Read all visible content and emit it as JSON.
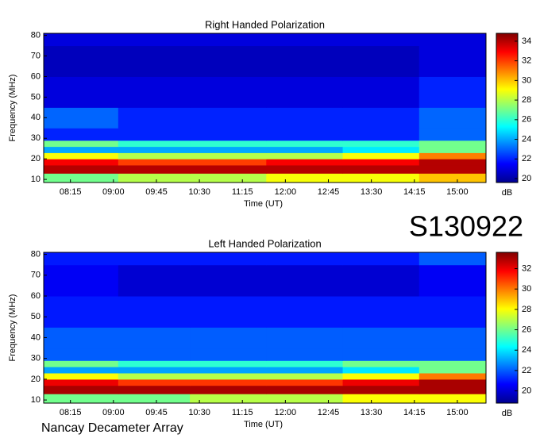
{
  "figure": {
    "id_label": "S130922",
    "footer": "Nancay Decameter Array"
  },
  "chart_data": [
    {
      "type": "heatmap",
      "title": "Right Handed Polarization",
      "x_label": "Time (UT)",
      "y_label": "Frequency (MHz)",
      "colorbar_label": "dB",
      "xlim": [
        467,
        930
      ],
      "xticks": [
        {
          "value": 495,
          "label": "08:15"
        },
        {
          "value": 540,
          "label": "09:00"
        },
        {
          "value": 585,
          "label": "09:45"
        },
        {
          "value": 630,
          "label": "10:30"
        },
        {
          "value": 675,
          "label": "11:15"
        },
        {
          "value": 720,
          "label": "12:00"
        },
        {
          "value": 765,
          "label": "12:45"
        },
        {
          "value": 810,
          "label": "13:30"
        },
        {
          "value": 855,
          "label": "14:15"
        },
        {
          "value": 900,
          "label": "15:00"
        }
      ],
      "ylim": [
        8.5,
        81
      ],
      "yticks": [
        10,
        20,
        30,
        40,
        50,
        60,
        70,
        80
      ],
      "zlim": [
        19.6,
        34.8
      ],
      "zticks": [
        20,
        22,
        24,
        26,
        28,
        30,
        32,
        34
      ],
      "x_bins": [
        467,
        545,
        620,
        700,
        780,
        860,
        930
      ],
      "y_bins": [
        8.5,
        13,
        17,
        20,
        23,
        26,
        29,
        35,
        45,
        60,
        75,
        81
      ],
      "z": [
        [
          27,
          28,
          28,
          29,
          29,
          30
        ],
        [
          34,
          34,
          34,
          34,
          34,
          34
        ],
        [
          33,
          32,
          32,
          33,
          33,
          34
        ],
        [
          29,
          28,
          28,
          28,
          29,
          31
        ],
        [
          24,
          24,
          24,
          24,
          25,
          27
        ],
        [
          27,
          26,
          26,
          26,
          26,
          27
        ],
        [
          22,
          22,
          22,
          22,
          22,
          23
        ],
        [
          23,
          22,
          22,
          22,
          22,
          23
        ],
        [
          21,
          21,
          21,
          21,
          21,
          22
        ],
        [
          20.5,
          20.5,
          20.5,
          20.5,
          20.5,
          21
        ],
        [
          21,
          21,
          21,
          21,
          21,
          21
        ]
      ]
    },
    {
      "type": "heatmap",
      "title": "Left Handed Polarization",
      "x_label": "Time (UT)",
      "y_label": "Frequency (MHz)",
      "colorbar_label": "dB",
      "xlim": [
        467,
        930
      ],
      "xticks": [
        {
          "value": 495,
          "label": "08:15"
        },
        {
          "value": 540,
          "label": "09:00"
        },
        {
          "value": 585,
          "label": "09:45"
        },
        {
          "value": 630,
          "label": "10:30"
        },
        {
          "value": 675,
          "label": "11:15"
        },
        {
          "value": 720,
          "label": "12:00"
        },
        {
          "value": 765,
          "label": "12:45"
        },
        {
          "value": 810,
          "label": "13:30"
        },
        {
          "value": 855,
          "label": "14:15"
        },
        {
          "value": 900,
          "label": "15:00"
        }
      ],
      "ylim": [
        8.5,
        81
      ],
      "yticks": [
        10,
        20,
        30,
        40,
        50,
        60,
        70,
        80
      ],
      "zlim": [
        18.8,
        33.6
      ],
      "zticks": [
        20,
        22,
        24,
        26,
        28,
        30,
        32
      ],
      "x_bins": [
        467,
        545,
        620,
        700,
        780,
        860,
        930
      ],
      "y_bins": [
        8.5,
        13,
        17,
        20,
        23,
        26,
        29,
        35,
        45,
        60,
        75,
        81
      ],
      "z": [
        [
          26,
          26,
          27,
          27,
          28,
          28
        ],
        [
          33,
          33,
          33,
          33,
          33,
          33
        ],
        [
          32,
          31,
          31,
          31,
          32,
          33
        ],
        [
          28,
          27,
          27,
          27,
          28,
          30
        ],
        [
          23,
          23,
          23,
          23,
          24,
          26
        ],
        [
          26,
          25,
          25,
          25,
          26,
          26
        ],
        [
          22,
          22,
          22,
          22,
          22,
          22
        ],
        [
          22,
          22,
          22,
          22,
          22,
          22
        ],
        [
          21,
          21,
          21,
          21,
          21,
          21
        ],
        [
          20.5,
          20,
          20,
          20,
          20,
          20.5
        ],
        [
          21,
          21,
          21,
          21,
          21,
          22
        ]
      ]
    }
  ]
}
